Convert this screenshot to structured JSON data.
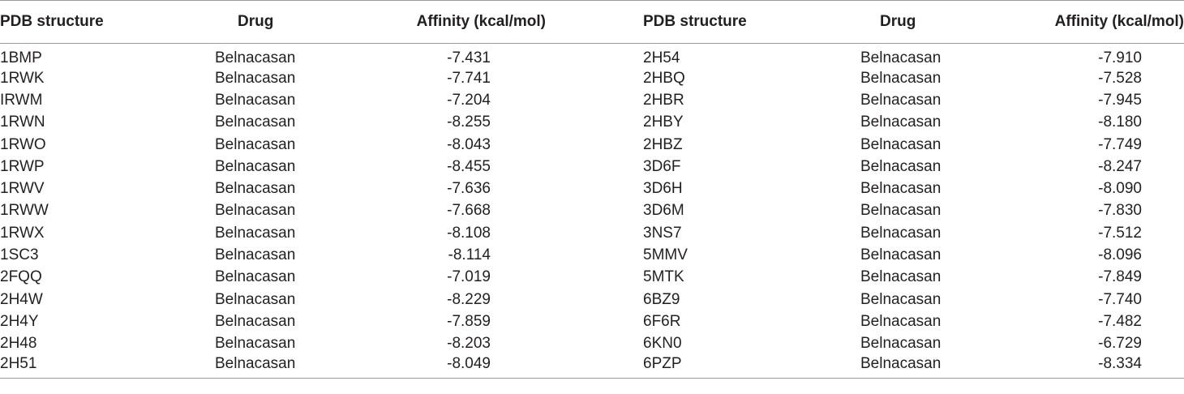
{
  "table": {
    "headers": [
      "PDB structure",
      "Drug",
      "Affinity (kcal/mol)",
      "PDB structure",
      "Drug",
      "Affinity (kcal/mol)"
    ],
    "rows": [
      [
        "1BMP",
        "Belnacasan",
        "-7.431",
        "2H54",
        "Belnacasan",
        "-7.910"
      ],
      [
        "1RWK",
        "Belnacasan",
        "-7.741",
        "2HBQ",
        "Belnacasan",
        "-7.528"
      ],
      [
        "IRWM",
        "Belnacasan",
        "-7.204",
        "2HBR",
        "Belnacasan",
        "-7.945"
      ],
      [
        "1RWN",
        "Belnacasan",
        "-8.255",
        "2HBY",
        "Belnacasan",
        "-8.180"
      ],
      [
        "1RWO",
        "Belnacasan",
        "-8.043",
        "2HBZ",
        "Belnacasan",
        "-7.749"
      ],
      [
        "1RWP",
        "Belnacasan",
        "-8.455",
        "3D6F",
        "Belnacasan",
        "-8.247"
      ],
      [
        "1RWV",
        "Belnacasan",
        "-7.636",
        "3D6H",
        "Belnacasan",
        "-8.090"
      ],
      [
        "1RWW",
        "Belnacasan",
        "-7.668",
        "3D6M",
        "Belnacasan",
        "-7.830"
      ],
      [
        "1RWX",
        "Belnacasan",
        "-8.108",
        "3NS7",
        "Belnacasan",
        "-7.512"
      ],
      [
        "1SC3",
        "Belnacasan",
        "-8.114",
        "5MMV",
        "Belnacasan",
        "-8.096"
      ],
      [
        "2FQQ",
        "Belnacasan",
        "-7.019",
        "5MTK",
        "Belnacasan",
        "-7.849"
      ],
      [
        "2H4W",
        "Belnacasan",
        "-8.229",
        "6BZ9",
        "Belnacasan",
        "-7.740"
      ],
      [
        "2H4Y",
        "Belnacasan",
        "-7.859",
        "6F6R",
        "Belnacasan",
        "-7.482"
      ],
      [
        "2H48",
        "Belnacasan",
        "-8.203",
        "6KN0",
        "Belnacasan",
        "-6.729"
      ],
      [
        "2H51",
        "Belnacasan",
        "-8.049",
        "6PZP",
        "Belnacasan",
        "-8.334"
      ]
    ]
  }
}
